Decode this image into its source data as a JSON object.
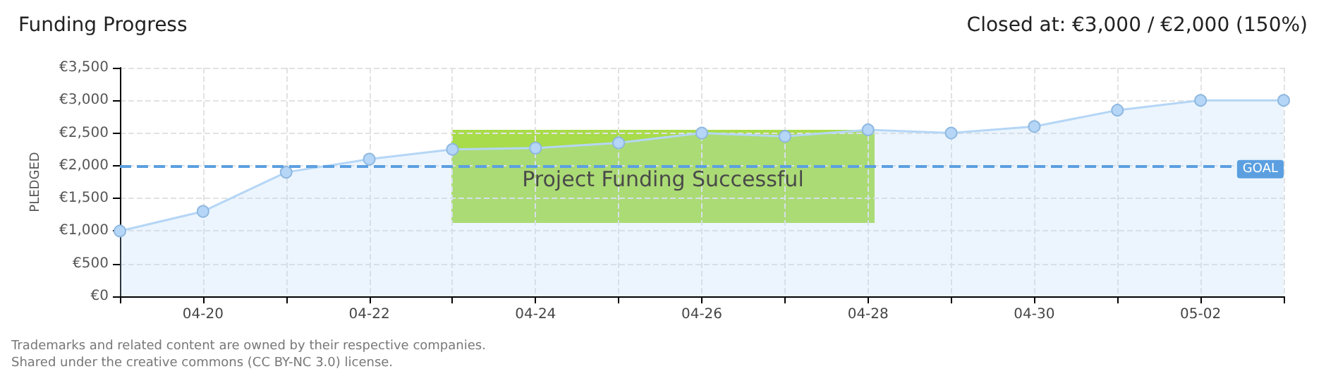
{
  "chart_data": {
    "type": "area",
    "title": "Funding Progress",
    "subtitle": "Closed at: €3,000 / €2,000 (150%)",
    "ylabel": "PLEDGED",
    "categories": [
      null,
      "04-20",
      null,
      "04-22",
      null,
      "04-24",
      null,
      "04-26",
      null,
      "04-28",
      null,
      "04-30",
      null,
      "05-02",
      null
    ],
    "series": [
      {
        "color": "#b5d6f6",
        "values": [
          1000,
          1300,
          1900,
          2100,
          2250,
          2270,
          2350,
          2500,
          2450,
          2550,
          2500,
          2600,
          2850,
          3000,
          3000
        ]
      }
    ],
    "ylim": [
      0,
      3500
    ],
    "yticks": [
      {
        "value": 0,
        "label": "€0"
      },
      {
        "value": 500,
        "label": "€500"
      },
      {
        "value": 1000,
        "label": "€1,000"
      },
      {
        "value": 1500,
        "label": "€1,500"
      },
      {
        "value": 2000,
        "label": "€2,000"
      },
      {
        "value": 2500,
        "label": "€2,500"
      },
      {
        "value": 3000,
        "label": "€3,000"
      },
      {
        "value": 3500,
        "label": "€3,500"
      }
    ],
    "ref_lines": [
      {
        "axis": "y",
        "value": 2000,
        "label": "GOAL",
        "color": "#5b9fe0",
        "line_style": "dashed"
      }
    ],
    "annotations": [
      "Project Funding Successful",
      "Trademarks and related content are owned by their respective companies.",
      "Shared under the creative commons (CC BY-NC 3.0) license."
    ],
    "grid": true,
    "marker": "circle",
    "line_style": "solid"
  }
}
